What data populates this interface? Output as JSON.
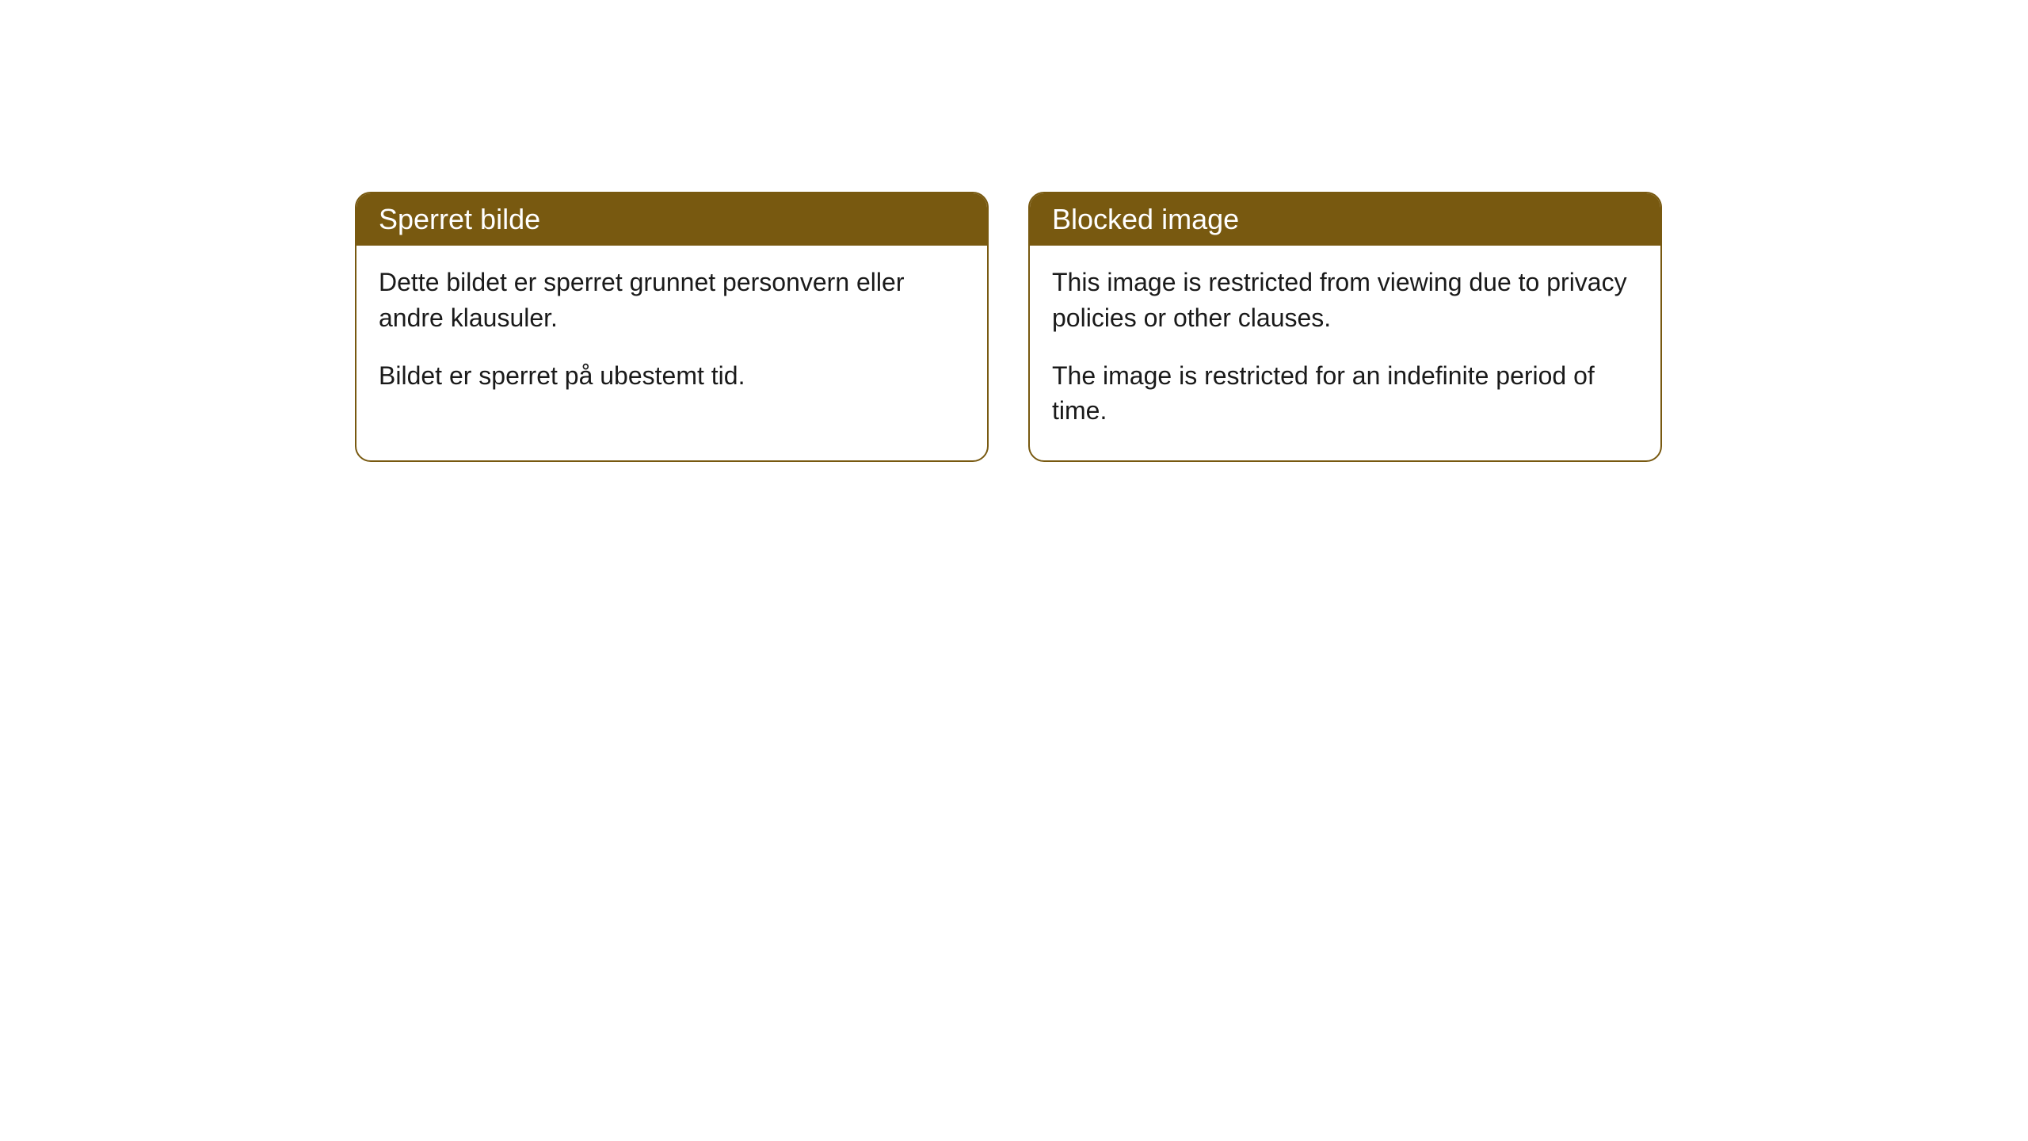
{
  "cards": [
    {
      "title": "Sperret bilde",
      "paragraph1": "Dette bildet er sperret grunnet personvern eller andre klausuler.",
      "paragraph2": "Bildet er sperret på ubestemt tid."
    },
    {
      "title": "Blocked image",
      "paragraph1": "This image is restricted from viewing due to privacy policies or other clauses.",
      "paragraph2": "The image is restricted for an indefinite period of time."
    }
  ],
  "styling": {
    "header_background": "#785910",
    "header_text_color": "#ffffff",
    "border_color": "#785910",
    "body_text_color": "#1a1a1a",
    "background_color": "#ffffff",
    "border_radius": 20,
    "title_fontsize": 36,
    "body_fontsize": 32
  }
}
